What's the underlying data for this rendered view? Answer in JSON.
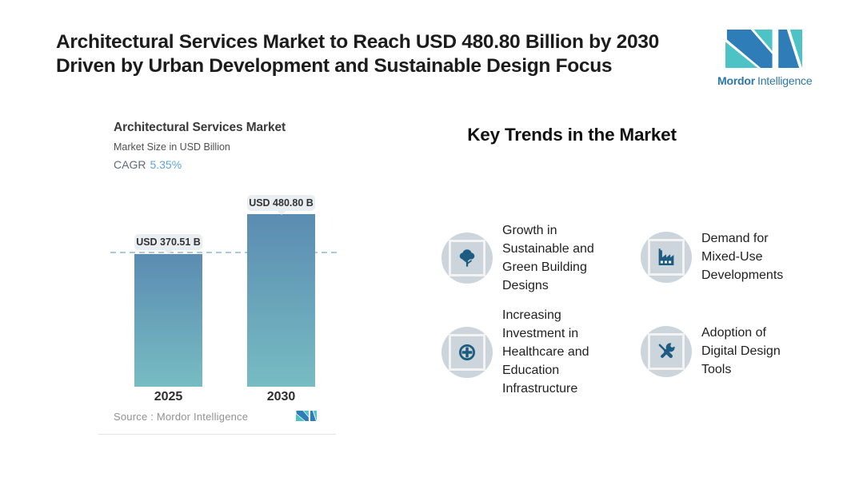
{
  "header": {
    "title": "Architectural Services Market to Reach USD 480.80 Billion by 2030\nDriven by Urban Development and Sustainable Design Focus",
    "logo": {
      "brand_bold": "Mordor",
      "brand_regular": "Intelligence"
    }
  },
  "chart_panel": {
    "title": "Architectural Services Market",
    "subtitle": "Market Size in USD Billion",
    "cagr_label": "CAGR",
    "cagr_value": "5.35%",
    "source": "Source :  Mordor Intelligence"
  },
  "chart_data": {
    "type": "bar",
    "title": "Architectural Services Market",
    "subtitle": "Market Size in USD Billion",
    "unit": "USD Billion",
    "cagr": "5.35%",
    "categories": [
      "2025",
      "2030"
    ],
    "values": [
      370.51,
      480.8
    ],
    "value_labels": [
      "USD 370.51 B",
      "USD 480.80 B"
    ],
    "ylim": [
      0,
      520
    ],
    "grid": false,
    "reference_line": 370.51,
    "legend": "none",
    "bar_gradient": [
      "#5B8CB2",
      "#77BCC2"
    ]
  },
  "trends": {
    "heading": "Key Trends in the Market",
    "items": [
      {
        "icon": "tree-icon",
        "label": "Growth in\nSustainable and\nGreen Building\nDesigns"
      },
      {
        "icon": "factory-icon",
        "label": "Demand for\nMixed-Use\nDevelopments"
      },
      {
        "icon": "medical-cross-icon",
        "label": "Increasing\nInvestment in\nHealthcare and\nEducation\nInfrastructure"
      },
      {
        "icon": "tools-icon",
        "label": "Adoption of\nDigital Design\nTools"
      }
    ]
  },
  "colors": {
    "accent_teal": "#4EC3C6",
    "accent_blue": "#2E7CB8",
    "bar_top": "#5B8CB2",
    "bar_bottom": "#77BCC2",
    "cagr_value": "#5FA3D8",
    "badge_bg": "#CDD5DC",
    "icon_blue": "#1D5C80",
    "dashed_line": "#A9C9DF",
    "bubble_bg": "#E9EEF2"
  }
}
